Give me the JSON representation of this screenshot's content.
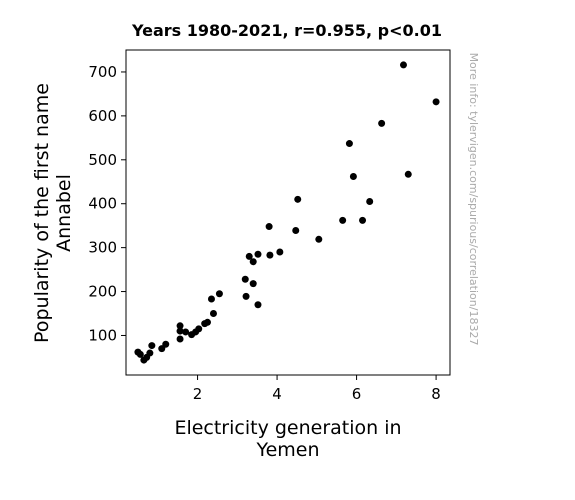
{
  "chart_data": {
    "type": "scatter",
    "title": "Years 1980-2021, r=0.955, p<0.01",
    "xlabel_lines": [
      "Electricity generation in",
      "Yemen"
    ],
    "ylabel_lines": [
      "Popularity of the first name",
      "Annabel"
    ],
    "xlim": [
      0.2,
      8.35
    ],
    "ylim": [
      10,
      750
    ],
    "x_ticks": [
      2,
      4,
      6,
      8
    ],
    "y_ticks": [
      100,
      200,
      300,
      400,
      500,
      600,
      700
    ],
    "grid": false,
    "marker_color": "#000000",
    "points": [
      {
        "x": 0.5,
        "y": 62
      },
      {
        "x": 0.56,
        "y": 57
      },
      {
        "x": 0.65,
        "y": 44
      },
      {
        "x": 0.72,
        "y": 50
      },
      {
        "x": 0.8,
        "y": 60
      },
      {
        "x": 0.85,
        "y": 77
      },
      {
        "x": 1.1,
        "y": 70
      },
      {
        "x": 1.2,
        "y": 80
      },
      {
        "x": 1.56,
        "y": 122
      },
      {
        "x": 1.56,
        "y": 110
      },
      {
        "x": 1.56,
        "y": 92
      },
      {
        "x": 1.7,
        "y": 108
      },
      {
        "x": 1.85,
        "y": 102
      },
      {
        "x": 1.95,
        "y": 108
      },
      {
        "x": 2.03,
        "y": 115
      },
      {
        "x": 2.18,
        "y": 127
      },
      {
        "x": 2.25,
        "y": 130
      },
      {
        "x": 2.35,
        "y": 183
      },
      {
        "x": 2.4,
        "y": 150
      },
      {
        "x": 2.55,
        "y": 195
      },
      {
        "x": 3.2,
        "y": 228
      },
      {
        "x": 3.22,
        "y": 189
      },
      {
        "x": 3.3,
        "y": 280
      },
      {
        "x": 3.4,
        "y": 268
      },
      {
        "x": 3.4,
        "y": 218
      },
      {
        "x": 3.52,
        "y": 285
      },
      {
        "x": 3.52,
        "y": 170
      },
      {
        "x": 3.8,
        "y": 348
      },
      {
        "x": 3.82,
        "y": 283
      },
      {
        "x": 4.07,
        "y": 290
      },
      {
        "x": 4.47,
        "y": 339
      },
      {
        "x": 4.52,
        "y": 410
      },
      {
        "x": 5.05,
        "y": 319
      },
      {
        "x": 5.65,
        "y": 362
      },
      {
        "x": 5.82,
        "y": 537
      },
      {
        "x": 5.92,
        "y": 462
      },
      {
        "x": 6.15,
        "y": 362
      },
      {
        "x": 6.33,
        "y": 405
      },
      {
        "x": 6.63,
        "y": 583
      },
      {
        "x": 7.18,
        "y": 716
      },
      {
        "x": 7.3,
        "y": 467
      },
      {
        "x": 8.0,
        "y": 632
      }
    ]
  },
  "watermark": "More info: tylervigen.com/spurious/correlation/18327"
}
